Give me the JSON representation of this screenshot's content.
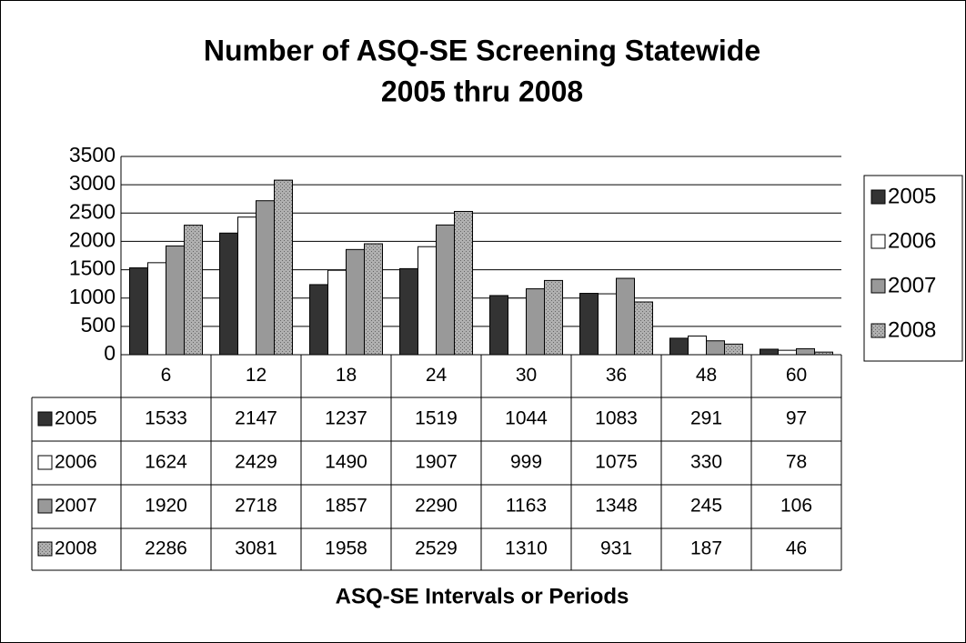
{
  "chart_data": {
    "type": "bar",
    "title": "Number of ASQ-SE Screening Statewide",
    "subtitle": "2005 thru 2008",
    "x_label": "ASQ-SE Intervals or Periods",
    "categories": [
      "6",
      "12",
      "18",
      "24",
      "30",
      "36",
      "48",
      "60"
    ],
    "series": [
      {
        "name": "2005",
        "color": "#333333",
        "values": [
          1533,
          2147,
          1237,
          1519,
          1044,
          1083,
          291,
          97
        ]
      },
      {
        "name": "2006",
        "color": "#ffffff",
        "values": [
          1624,
          2429,
          1490,
          1907,
          999,
          1075,
          330,
          78
        ]
      },
      {
        "name": "2007",
        "color": "#999999",
        "values": [
          1920,
          2718,
          1857,
          2290,
          1163,
          1348,
          245,
          106
        ]
      },
      {
        "name": "2008",
        "color": "#b0b0b0",
        "values": [
          2286,
          3081,
          1958,
          2529,
          1310,
          931,
          187,
          46
        ]
      }
    ],
    "ylim": [
      0,
      3500
    ],
    "yticks": [
      0,
      500,
      1000,
      1500,
      2000,
      2500,
      3000,
      3500
    ],
    "grid": true,
    "legend": "right",
    "data_table": true
  }
}
